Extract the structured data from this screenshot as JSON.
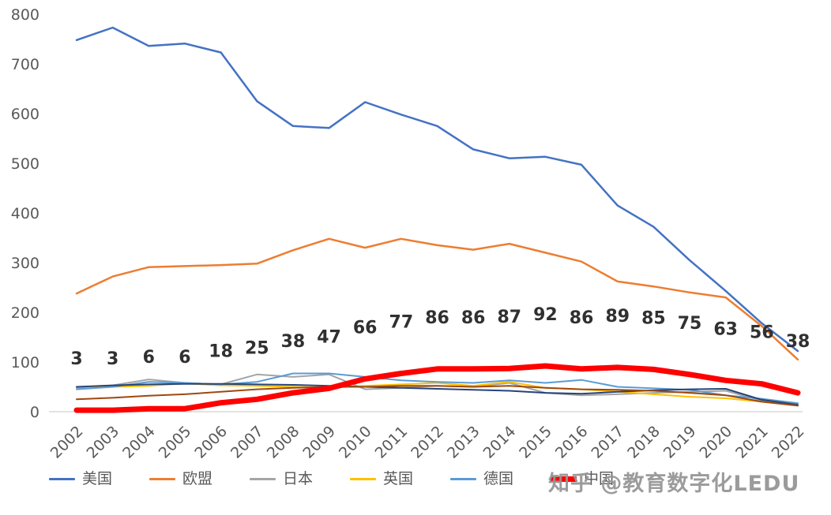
{
  "watermark": {
    "text": "知乎 @教育数字化LEDU"
  },
  "legend": {
    "items": [
      {
        "label": "美国",
        "color": "#4472C4",
        "thick": false
      },
      {
        "label": "欧盟",
        "color": "#ED7D31",
        "thick": false
      },
      {
        "label": "日本",
        "color": "#A5A5A5",
        "thick": false
      },
      {
        "label": "英国",
        "color": "#FFC000",
        "thick": false
      },
      {
        "label": "德国",
        "color": "#5B9BD5",
        "thick": false
      },
      {
        "label": "中国",
        "color": "#FF0000",
        "thick": true
      }
    ]
  },
  "chart_data": {
    "type": "line",
    "title": "",
    "xlabel": "",
    "ylabel": "",
    "ylim": [
      0,
      800
    ],
    "ytick_step": 100,
    "grid": false,
    "legend_position": "bottom",
    "categories": [
      "2002",
      "2003",
      "2004",
      "2005",
      "2006",
      "2007",
      "2008",
      "2009",
      "2010",
      "2011",
      "2012",
      "2013",
      "2014",
      "2015",
      "2016",
      "2017",
      "2018",
      "2019",
      "2020",
      "2021",
      "2022"
    ],
    "series": [
      {
        "name": "美国",
        "color": "#4472C4",
        "width": 2.5,
        "show_labels": false,
        "values": [
          748,
          773,
          736,
          741,
          723,
          625,
          575,
          571,
          623,
          598,
          575,
          528,
          510,
          513,
          497,
          415,
          372,
          305,
          243,
          178,
          122
        ]
      },
      {
        "name": "欧盟",
        "color": "#ED7D31",
        "width": 2.5,
        "show_labels": false,
        "values": [
          238,
          272,
          291,
          293,
          295,
          298,
          325,
          348,
          330,
          348,
          335,
          326,
          338,
          320,
          302,
          262,
          252,
          240,
          230,
          172,
          105
        ]
      },
      {
        "name": "日本",
        "color": "#A5A5A5",
        "width": 2,
        "show_labels": false,
        "values": [
          48,
          53,
          65,
          58,
          55,
          75,
          70,
          75,
          45,
          48,
          52,
          50,
          58,
          38,
          33,
          35,
          38,
          40,
          42,
          22,
          13
        ]
      },
      {
        "name": "英国",
        "color": "#FFC000",
        "width": 2,
        "show_labels": false,
        "values": [
          50,
          50,
          52,
          57,
          53,
          52,
          50,
          48,
          52,
          55,
          58,
          52,
          60,
          48,
          45,
          40,
          35,
          30,
          27,
          20,
          14
        ]
      },
      {
        "name": "德国",
        "color": "#5B9BD5",
        "width": 2,
        "show_labels": false,
        "values": [
          45,
          50,
          60,
          58,
          55,
          60,
          77,
          77,
          70,
          63,
          60,
          58,
          63,
          58,
          64,
          50,
          47,
          44,
          33,
          26,
          17
        ]
      },
      {
        "name": "",
        "color": "#264478",
        "width": 2,
        "show_labels": false,
        "values": [
          50,
          53,
          55,
          56,
          56,
          55,
          54,
          52,
          50,
          48,
          46,
          44,
          42,
          38,
          36,
          40,
          43,
          45,
          46,
          24,
          14
        ]
      },
      {
        "name": "",
        "color": "#9E480E",
        "width": 2,
        "show_labels": false,
        "values": [
          25,
          28,
          32,
          35,
          40,
          45,
          48,
          50,
          50,
          52,
          52,
          50,
          52,
          48,
          45,
          44,
          42,
          38,
          33,
          20,
          12
        ]
      },
      {
        "name": "中国",
        "color": "#FF0000",
        "width": 7,
        "show_labels": true,
        "values": [
          3,
          3,
          6,
          6,
          18,
          25,
          38,
          47,
          66,
          77,
          86,
          86,
          87,
          92,
          86,
          89,
          85,
          75,
          63,
          56,
          38
        ]
      }
    ]
  }
}
